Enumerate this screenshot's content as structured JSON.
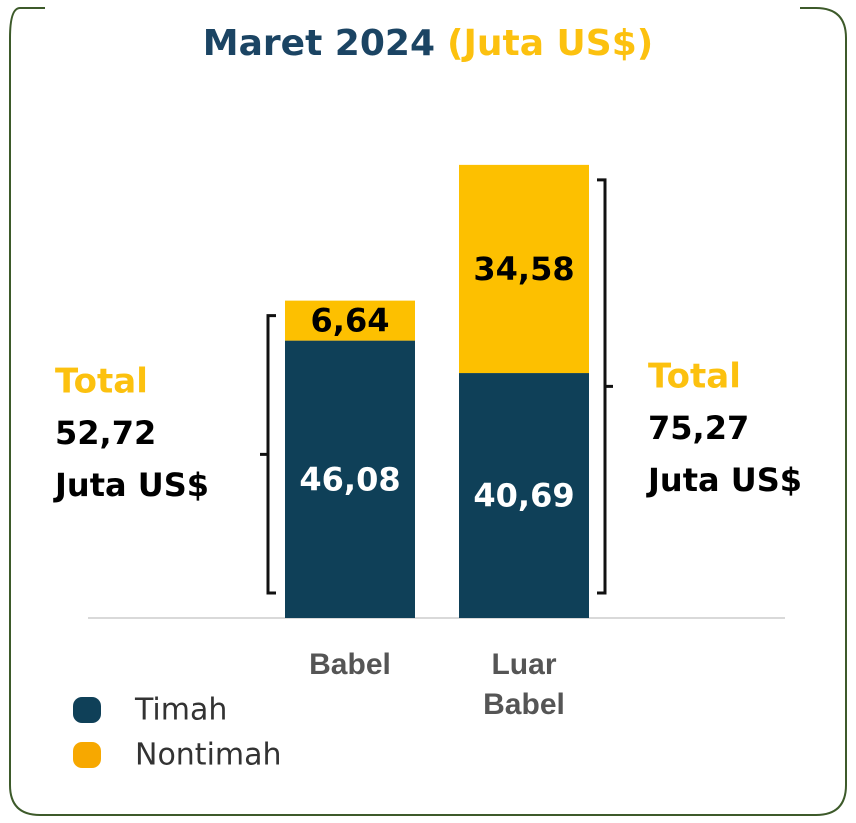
{
  "chart_data": {
    "type": "stacked_bar",
    "title": "Maret 2024",
    "subtitle": "(Juta US$)",
    "categories": [
      "Babel",
      "Luar Babel"
    ],
    "series": [
      {
        "name": "Timah",
        "color": "#0f4058",
        "label_color": "#ffffff",
        "values": [
          46.08,
          40.69
        ],
        "value_labels": [
          "46,08",
          "40,69"
        ]
      },
      {
        "name": "Nontimah",
        "color": "#fdc000",
        "legend_color": "#f7a800",
        "label_color": "#000000",
        "values": [
          6.64,
          34.58
        ],
        "value_labels": [
          "6,64",
          "34,58"
        ]
      }
    ],
    "totals": [
      {
        "label": "Total",
        "value": 52.72,
        "value_label": "52,72",
        "unit": "Juta US$"
      },
      {
        "label": "Total",
        "value": 75.27,
        "value_label": "75,27",
        "unit": "Juta US$"
      }
    ],
    "ylim": [
      0,
      80
    ]
  }
}
